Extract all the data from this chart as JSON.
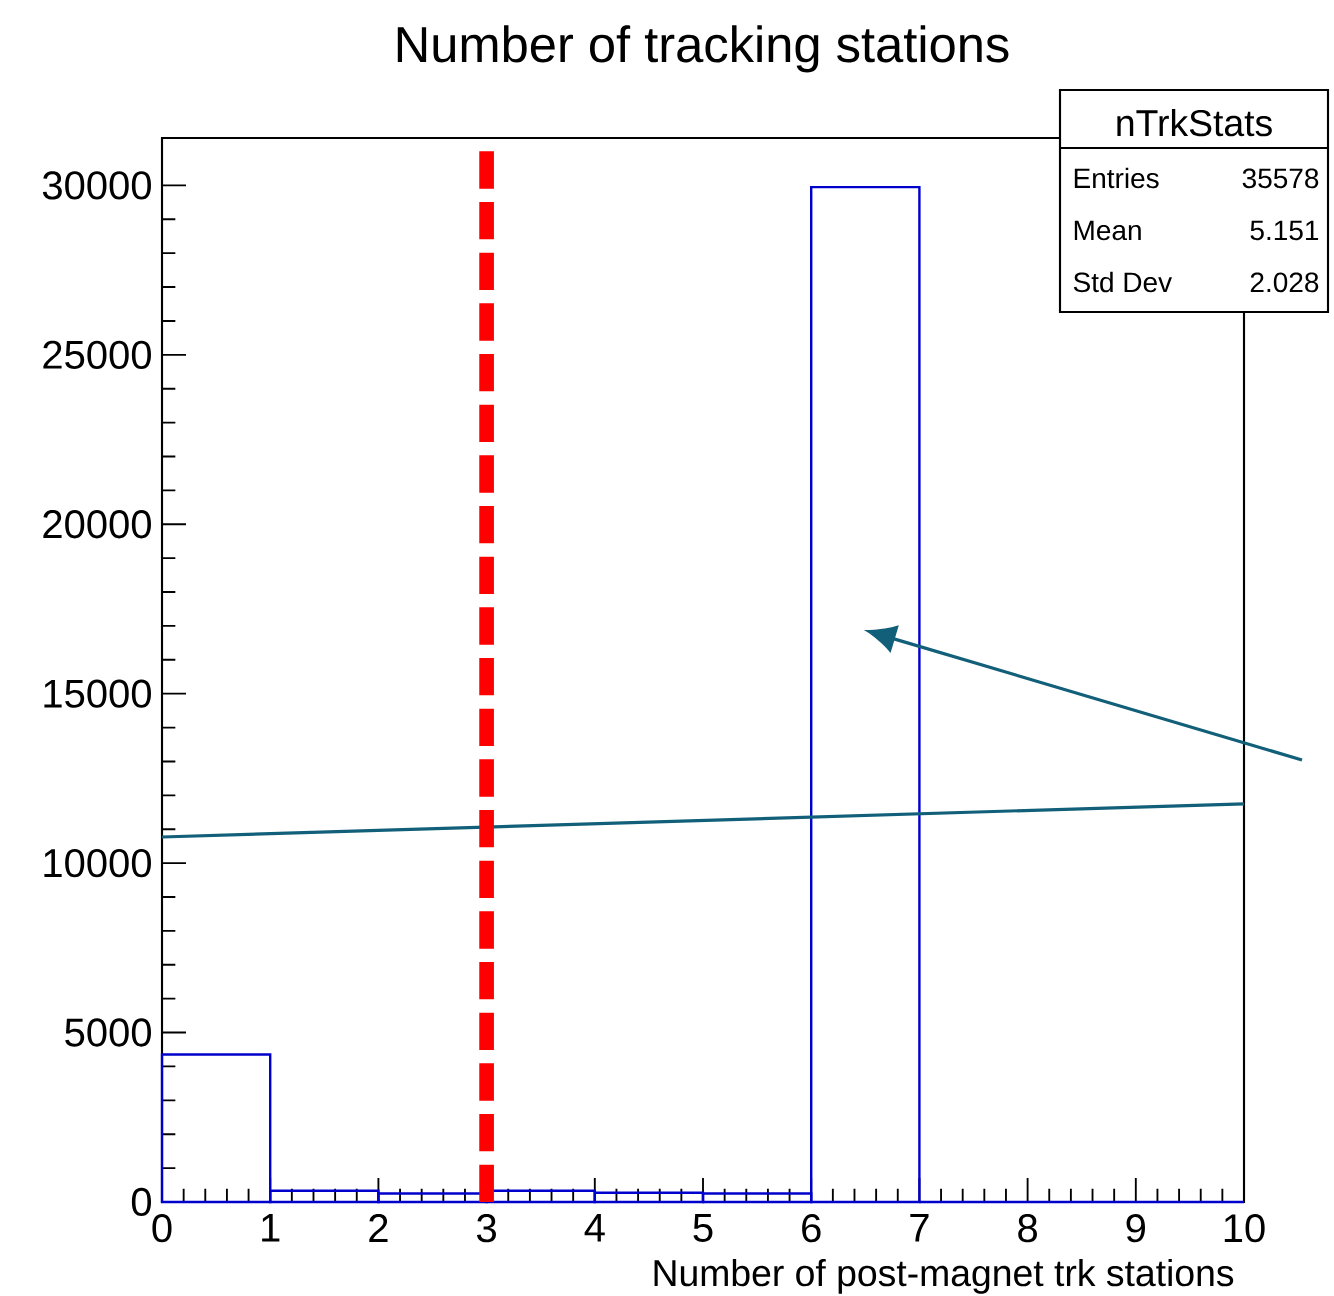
{
  "chart_data": {
    "type": "histogram",
    "title": "Number of tracking stations",
    "xlabel": "Number of post-magnet trk stations",
    "bins": [
      0,
      1,
      2,
      3,
      4,
      5,
      6,
      7,
      8,
      9,
      10
    ],
    "values": [
      4350,
      330,
      250,
      330,
      270,
      250,
      29950,
      0,
      0,
      0
    ],
    "color": "#0000cc",
    "xlim": [
      0,
      10
    ],
    "ylim": [
      0,
      31400
    ],
    "xticks": [
      0,
      1,
      2,
      3,
      4,
      5,
      6,
      7,
      8,
      9,
      10
    ],
    "yticks": [
      0,
      5000,
      10000,
      15000,
      20000,
      25000,
      30000
    ],
    "series": [
      {
        "type": "line",
        "color": "#125f7a",
        "x": [
          0,
          10
        ],
        "values": [
          10770,
          11750
        ]
      }
    ],
    "ref_lines": [
      {
        "axis": "x",
        "value": 3,
        "color": "#ff0000",
        "line_style": "dashed"
      }
    ],
    "annotations": [
      "nTrkStats",
      "Entries",
      "35578",
      "Mean",
      "5.151",
      "Std Dev",
      "2.028"
    ]
  }
}
